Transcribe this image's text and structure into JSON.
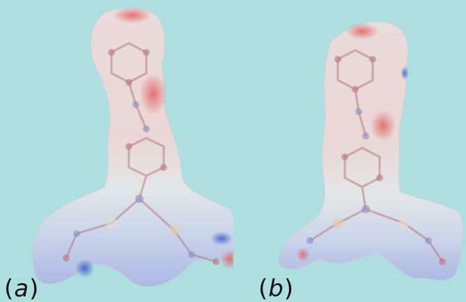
{
  "colors": {
    "background": "#aedfe0",
    "surface_neutral": "#ececea",
    "surface_negative": "#e06a6a",
    "surface_positive": "#6f86d6",
    "atom_carbon": "#b57a82",
    "atom_nitrogen": "#8a8fc4",
    "atom_oxygen": "#c2707a"
  },
  "panels": [
    {
      "id": "a",
      "label_open": "(",
      "label_letter": "a",
      "label_close": ")"
    },
    {
      "id": "b",
      "label_open": "(",
      "label_letter": "b",
      "label_close": ")"
    }
  ]
}
